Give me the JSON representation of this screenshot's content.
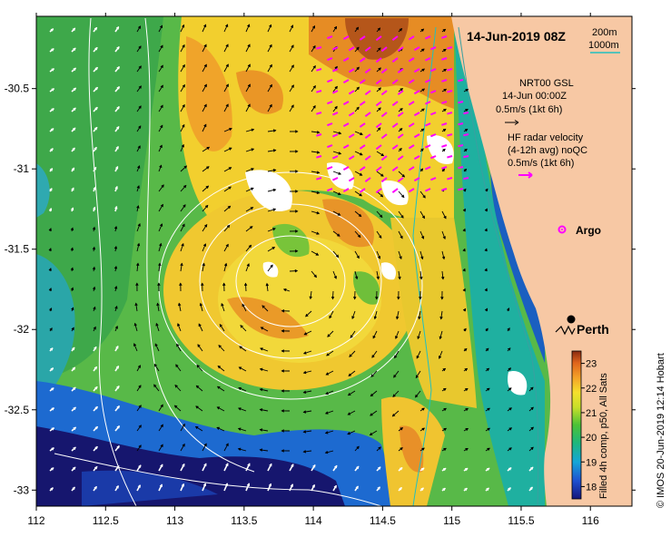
{
  "map": {
    "title": "14-Jun-2019 08Z",
    "isobaths": {
      "label_200": "200m",
      "label_1000": "1000m",
      "color_200": "#3aa0a0",
      "color_1000": "#20c0c0"
    },
    "lon_ticks": [
      "112",
      "112.5",
      "113",
      "113.5",
      "114",
      "114.5",
      "115",
      "115.5",
      "116"
    ],
    "lat_ticks": [
      "-30.5",
      "-31",
      "-31.5",
      "-32",
      "-32.5",
      "-33"
    ],
    "lon_range": [
      112,
      116.3
    ],
    "lat_range": [
      -33.1,
      -30.05
    ],
    "land_color": "#f7c8a4",
    "model": {
      "line1": "NRT00 GSL",
      "line2": "14-Jun 00:00Z",
      "scale": "0.5m/s (1kt 6h)"
    },
    "radar": {
      "line1": "HF radar velocity",
      "line2": "(4-12h avg) noQC",
      "scale": "0.5m/s (1kt 6h)",
      "color": "#ff00ff"
    },
    "argo": {
      "label": "Argo",
      "color": "#ff00ff"
    },
    "city": {
      "label": "Perth"
    },
    "colorbar": {
      "ticks": [
        "23",
        "22",
        "21",
        "20",
        "19",
        "18"
      ],
      "label": "Filled 4h comp, p50, All Sats",
      "range": [
        17.5,
        23.5
      ]
    },
    "credit": "© IMOS 20-Jun-2019 12:14 Hobart"
  }
}
